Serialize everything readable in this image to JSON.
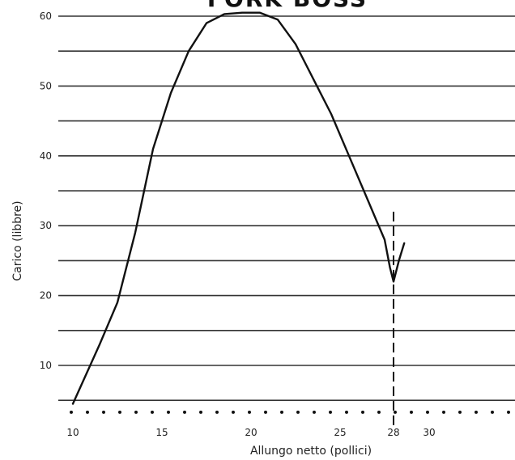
{
  "chart_data": {
    "type": "line",
    "title": "FORK BOSS",
    "xlabel": "Allungo netto (pollici)",
    "ylabel": "Carico (libbre)",
    "xlim": [
      10,
      30.5
    ],
    "ylim": [
      4,
      61
    ],
    "x_ticks": [
      "10",
      "15",
      "20",
      "25",
      "28",
      "30"
    ],
    "y_ticks": [
      "10",
      "20",
      "30",
      "40",
      "50",
      "60"
    ],
    "horizontal_lines_every": 5,
    "series": [
      {
        "x": [
          10,
          11.5,
          12.5,
          13.5,
          14.5,
          15.5,
          16.5,
          17.5,
          18.5,
          19.5,
          20.5,
          21.5,
          22.5,
          23.5,
          24.5,
          25.5,
          26.5,
          27,
          27.5,
          27.8,
          28,
          28.3,
          28.6
        ],
        "y": [
          4.5,
          13,
          19,
          29,
          41,
          49,
          55,
          59,
          60.3,
          60.5,
          60.5,
          59.5,
          56,
          51,
          46,
          40,
          34,
          31,
          28,
          24,
          22,
          25,
          27.5
        ]
      }
    ],
    "marker_line": {
      "x": 28,
      "y_top": 32,
      "style": "dashed"
    },
    "baseline": {
      "y": 3.3,
      "style": "dotted"
    }
  }
}
